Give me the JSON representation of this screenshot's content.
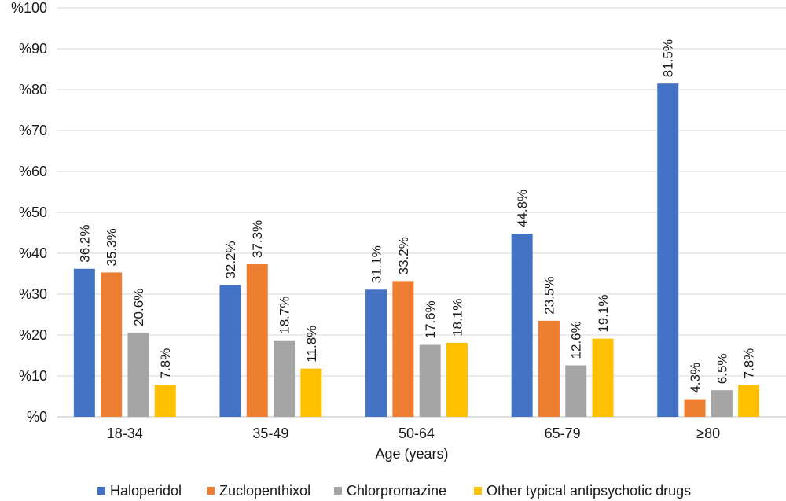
{
  "chart_data": {
    "type": "bar",
    "title": "",
    "xlabel": "Age (years)",
    "ylabel": "",
    "ylim": [
      0,
      100
    ],
    "yticks": [
      "%0",
      "%10",
      "%20",
      "%30",
      "%40",
      "%50",
      "%60",
      "%70",
      "%80",
      "%90",
      "%100"
    ],
    "categories": [
      "18-34",
      "35-49",
      "50-64",
      "65-79",
      "≥80"
    ],
    "series": [
      {
        "name": "Haloperidol",
        "color": "#4472C4",
        "values": [
          36.2,
          32.2,
          31.1,
          44.8,
          81.5
        ],
        "labels": [
          "36.2%",
          "32.2%",
          "31.1%",
          "44.8%",
          "81.5%"
        ]
      },
      {
        "name": "Zuclopenthixol",
        "color": "#ED7D31",
        "values": [
          35.3,
          37.3,
          33.2,
          23.5,
          4.3
        ],
        "labels": [
          "35.3%",
          "37.3%",
          "33.2%",
          "23.5%",
          "4.3%"
        ]
      },
      {
        "name": "Chlorpromazine",
        "color": "#A5A5A5",
        "values": [
          20.6,
          18.7,
          17.6,
          12.6,
          6.5
        ],
        "labels": [
          "20.6%",
          "18.7%",
          "17.6%",
          "12.6%",
          "6.5%"
        ]
      },
      {
        "name": "Other typical antipsychotic drugs",
        "color": "#FFC000",
        "values": [
          7.8,
          11.8,
          18.1,
          19.1,
          7.8
        ],
        "labels": [
          "7.8%",
          "11.8%",
          "18.1%",
          "19.1%",
          "7.8%"
        ]
      }
    ],
    "grid": true,
    "legend_position": "bottom"
  }
}
